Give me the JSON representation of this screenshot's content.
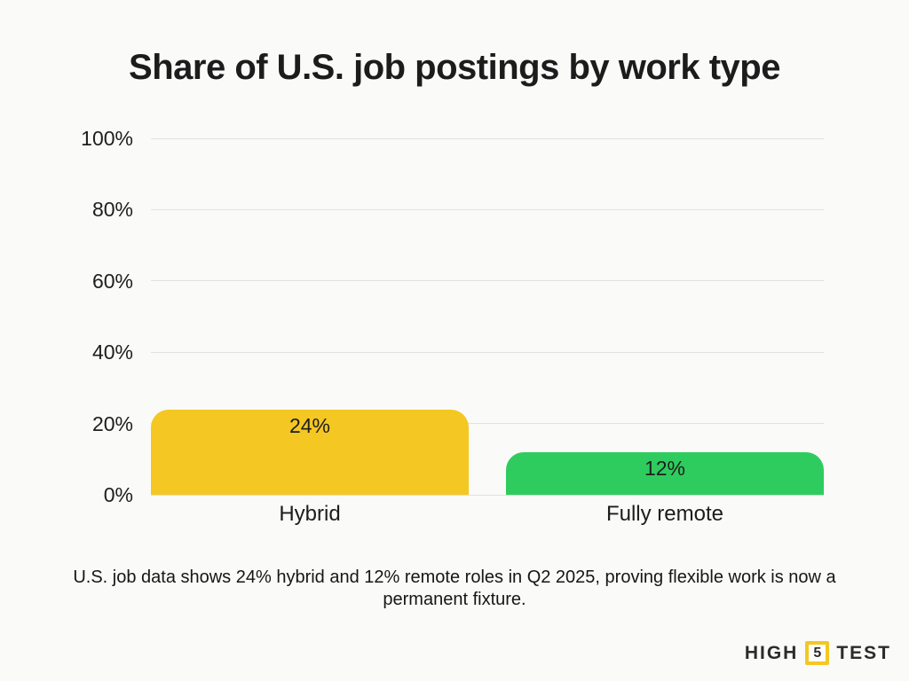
{
  "title": "Share of U.S. job postings by work type",
  "caption": "U.S. job data shows 24% hybrid and 12% remote roles in Q2 2025, proving flexible work is now a permanent fixture.",
  "logo": {
    "word_left": "HIGH",
    "number": "5",
    "word_right": "TEST"
  },
  "colors": {
    "background": "#FAFAF9",
    "gridline": "#E1E1DF",
    "text": "#1E1E1E",
    "hybrid_bar": "#F4C722",
    "remote_bar": "#2ECC5E",
    "logo_accent": "#F4C722"
  },
  "chart_data": {
    "type": "bar",
    "title": "Share of U.S. job postings by work type",
    "categories": [
      "Hybrid",
      "Fully remote"
    ],
    "values": [
      24,
      12
    ],
    "value_labels": [
      "24%",
      "12%"
    ],
    "bar_colors": [
      "#F4C722",
      "#2ECC5E"
    ],
    "xlabel": "",
    "ylabel": "",
    "ylim": [
      0,
      100
    ],
    "yticks": [
      0,
      20,
      40,
      60,
      80,
      100
    ],
    "ytick_labels": [
      "0%",
      "20%",
      "40%",
      "60%",
      "80%",
      "100%"
    ],
    "grid": true,
    "legend": false
  }
}
